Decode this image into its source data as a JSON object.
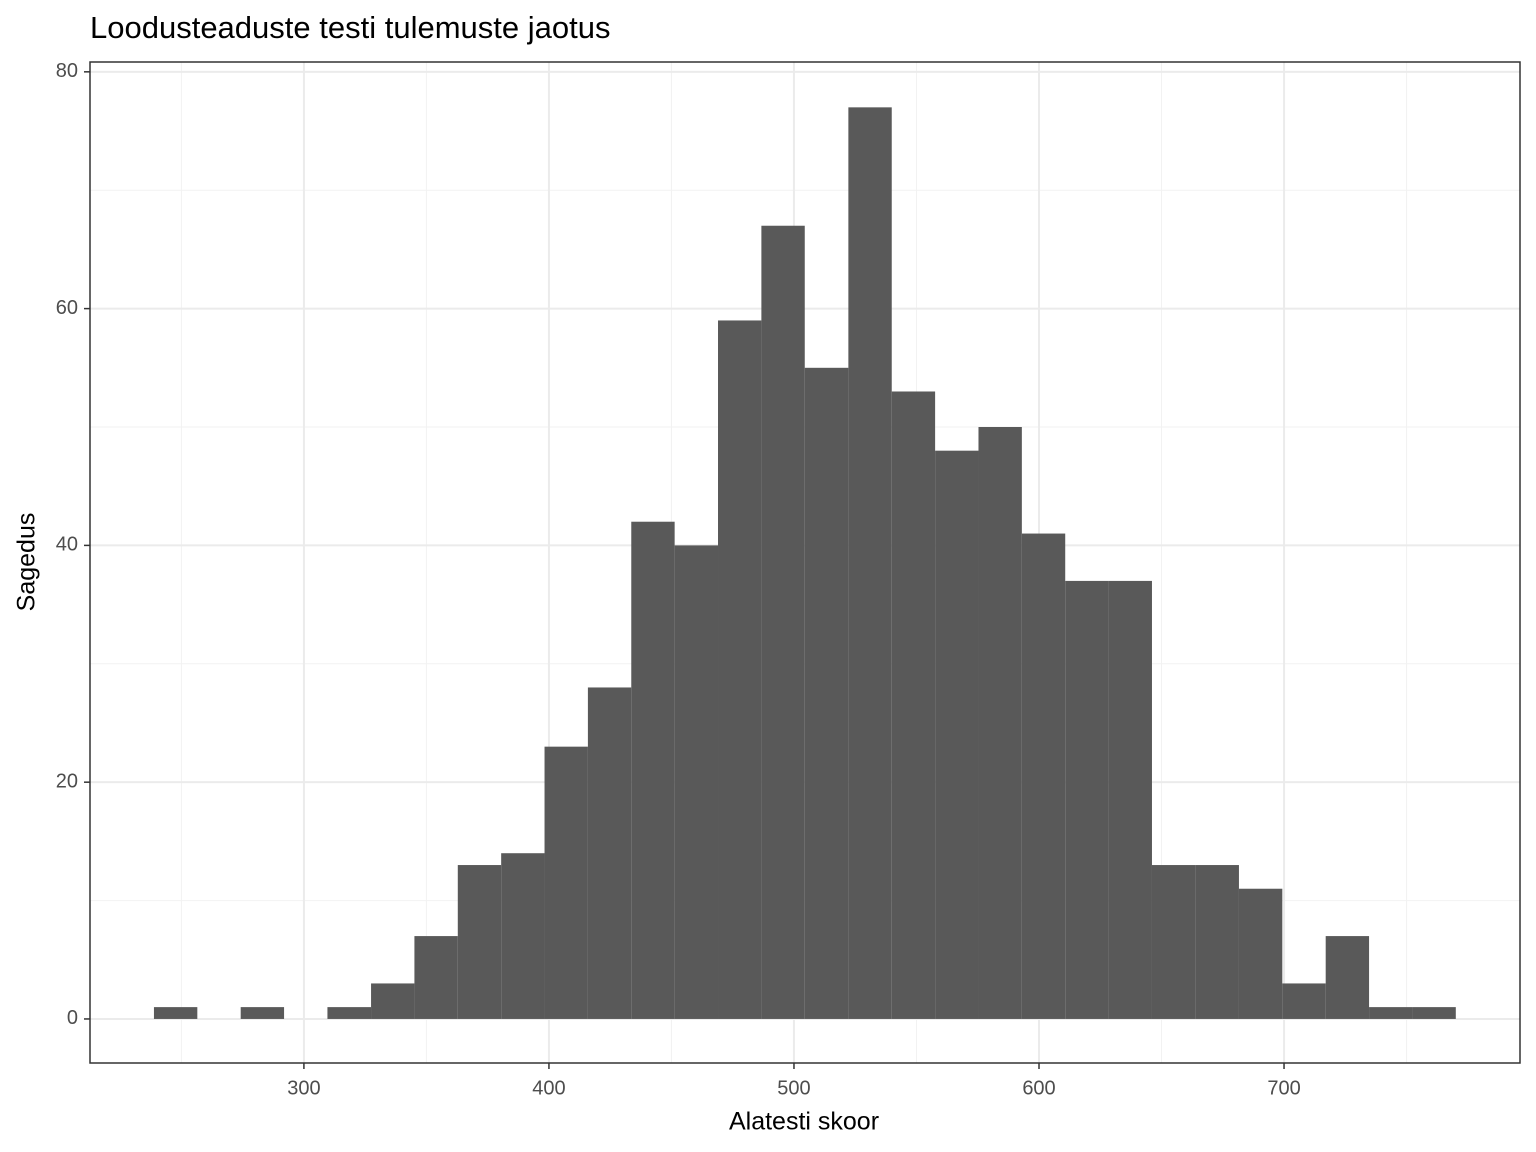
{
  "chart_data": {
    "type": "histogram",
    "title": "Loodusteaduste testi tulemuste jaotus",
    "x_label": "Alatesti skoor",
    "y_label": "Sagedus",
    "bins": [
      238.8,
      256.5,
      274.2,
      291.9,
      309.6,
      327.4,
      345.1,
      362.8,
      380.5,
      398.2,
      415.9,
      433.6,
      451.3,
      469.0,
      486.7,
      504.4,
      522.2,
      539.9,
      557.6,
      575.3,
      593.0,
      610.7,
      628.4,
      646.1,
      663.8,
      681.6,
      699.3,
      717.0,
      734.7,
      752.4,
      770.1
    ],
    "counts": [
      1,
      0,
      1,
      0,
      1,
      3,
      7,
      13,
      14,
      23,
      28,
      42,
      40,
      59,
      67,
      55,
      77,
      53,
      48,
      50,
      41,
      37,
      37,
      13,
      13,
      11,
      3,
      7,
      1,
      1
    ],
    "color": "#595959",
    "xlim": [
      212.7,
      796.3
    ],
    "ylim": [
      -3.72,
      80.83
    ],
    "xticks": [
      300,
      400,
      500,
      600,
      700
    ],
    "yticks": [
      0,
      20,
      40,
      60,
      80
    ],
    "minor_xticks": [
      250,
      350,
      450,
      550,
      650,
      750
    ],
    "minor_yticks": [
      10,
      30,
      50,
      70
    ],
    "grid": true
  }
}
